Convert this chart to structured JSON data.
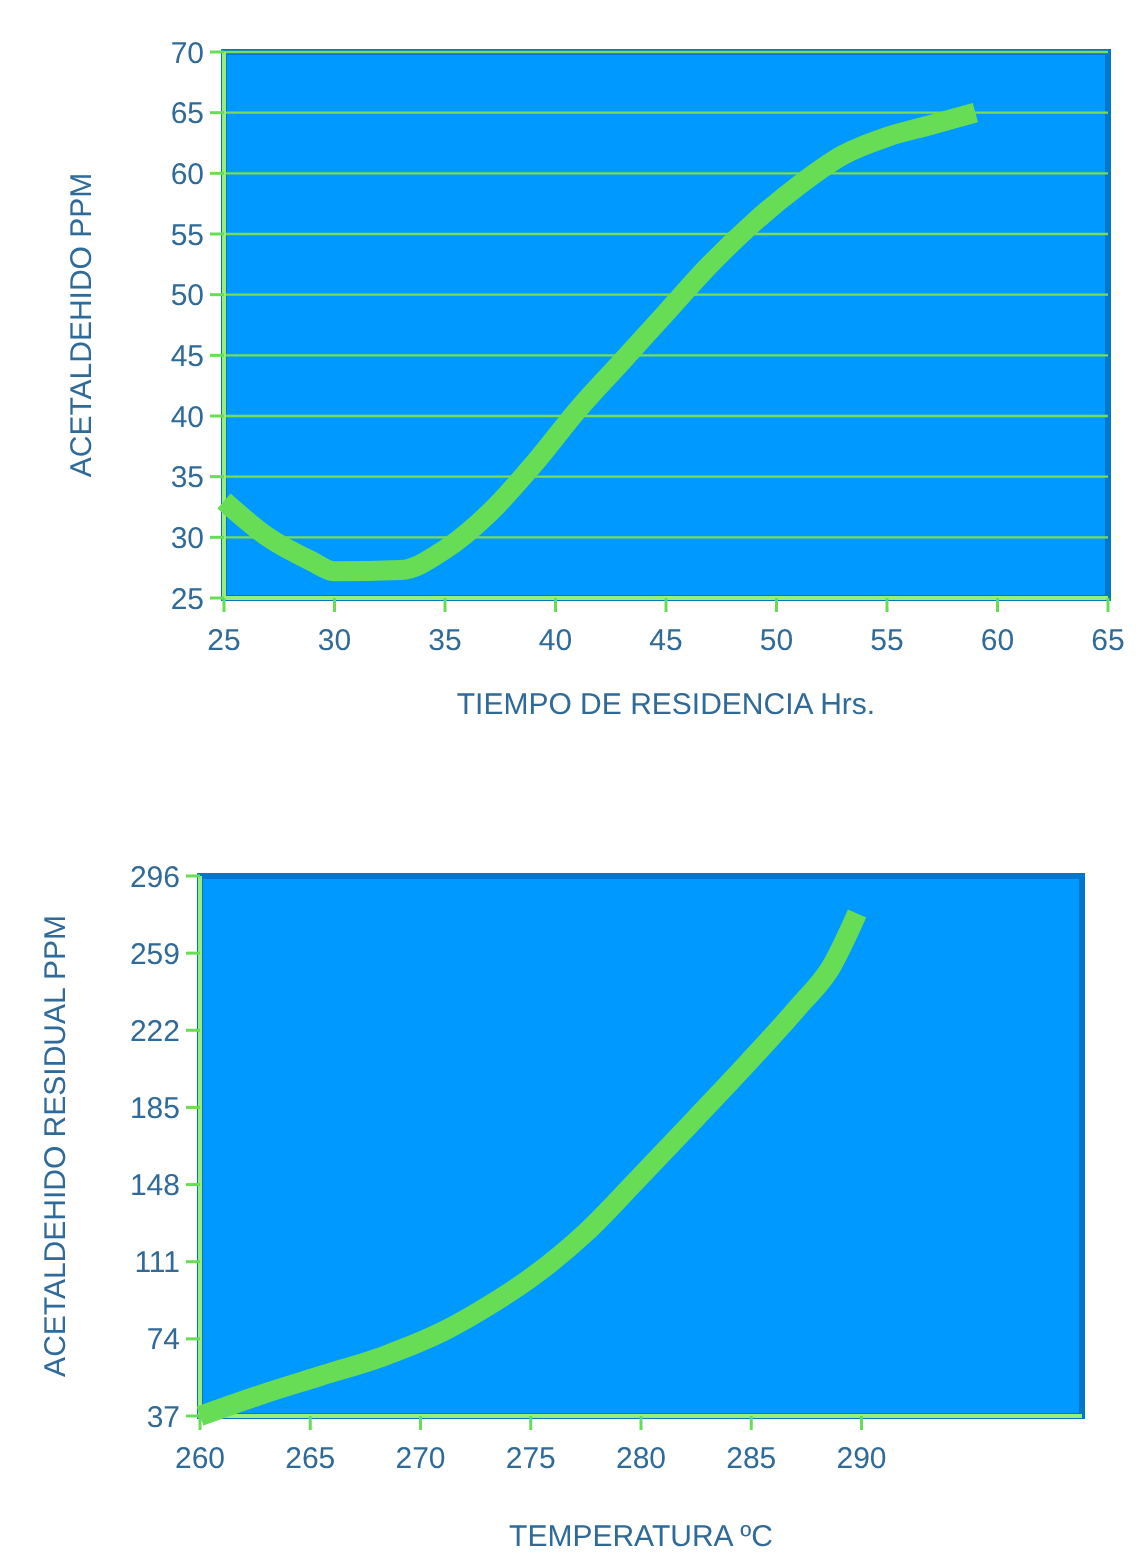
{
  "chart_data": [
    {
      "type": "line",
      "xlabel": "TIEMPO DE RESIDENCIA Hrs.",
      "ylabel": "ACETALDEHIDO PPM",
      "xlim": [
        25,
        65
      ],
      "ylim": [
        25,
        70
      ],
      "xticks": [
        25,
        30,
        35,
        40,
        45,
        50,
        55,
        60,
        65
      ],
      "yticks": [
        25,
        30,
        35,
        40,
        45,
        50,
        55,
        60,
        65,
        70
      ],
      "grid": "y",
      "series": [
        {
          "color": "#66dd55",
          "x": [
            25,
            27,
            29,
            30,
            33,
            35,
            37,
            39,
            41,
            43,
            45,
            47,
            49,
            51,
            53,
            55,
            57,
            59
          ],
          "values": [
            33,
            30,
            28,
            27.2,
            27.3,
            29,
            32,
            36,
            40.5,
            44.5,
            48.5,
            52.5,
            56,
            59,
            61.5,
            63,
            64,
            65
          ]
        }
      ]
    },
    {
      "type": "line",
      "xlabel": "TEMPERATURA ºC",
      "ylabel": "ACETALDEHIDO RESIDUAL PPM",
      "xlim": [
        260,
        300
      ],
      "ylim": [
        37,
        296
      ],
      "xticks": [
        260,
        265,
        270,
        275,
        280,
        285,
        290
      ],
      "yticks": [
        37,
        74,
        111,
        148,
        185,
        222,
        259,
        296
      ],
      "grid": false,
      "series": [
        {
          "color": "#66dd55",
          "x": [
            260,
            262.7,
            265.4,
            268.4,
            271.1,
            273.1,
            275.1,
            277.5,
            279.8,
            282.5,
            284.9,
            287.2,
            288.6,
            289.8
          ],
          "values": [
            37,
            47,
            56,
            66,
            78,
            90,
            104,
            125,
            150,
            180,
            207,
            234,
            252,
            278
          ]
        }
      ]
    }
  ]
}
